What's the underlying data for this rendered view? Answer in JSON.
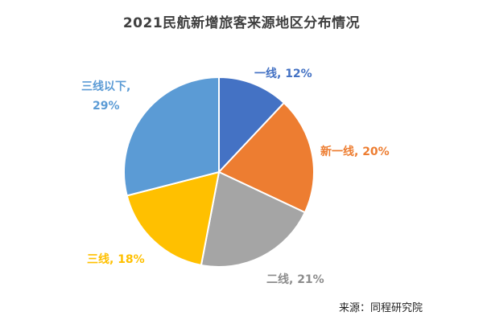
{
  "chart_data": {
    "type": "pie",
    "title": "2021民航新增旅客来源地区分布情况",
    "slices": [
      {
        "label": "一线",
        "value": 12,
        "text": "一线, 12%",
        "color": "#4472c4",
        "label_color": "#4472c4"
      },
      {
        "label": "新一线",
        "value": 20,
        "text": "新一线, 20%",
        "color": "#ed7d31",
        "label_color": "#ed7d31"
      },
      {
        "label": "二线",
        "value": 21,
        "text": "二线, 21%",
        "color": "#a5a5a5",
        "label_color": "#8c8c8c"
      },
      {
        "label": "三线",
        "value": 18,
        "text": "三线, 18%",
        "color": "#ffc000",
        "label_color": "#ffc000"
      },
      {
        "label": "三线以下",
        "value": 29,
        "text": "三线以下,|29%",
        "color": "#5b9bd5",
        "label_color": "#5b9bd5"
      }
    ],
    "start_angle_deg": 0,
    "direction": "clockwise"
  },
  "source": "来源：同程研究院"
}
